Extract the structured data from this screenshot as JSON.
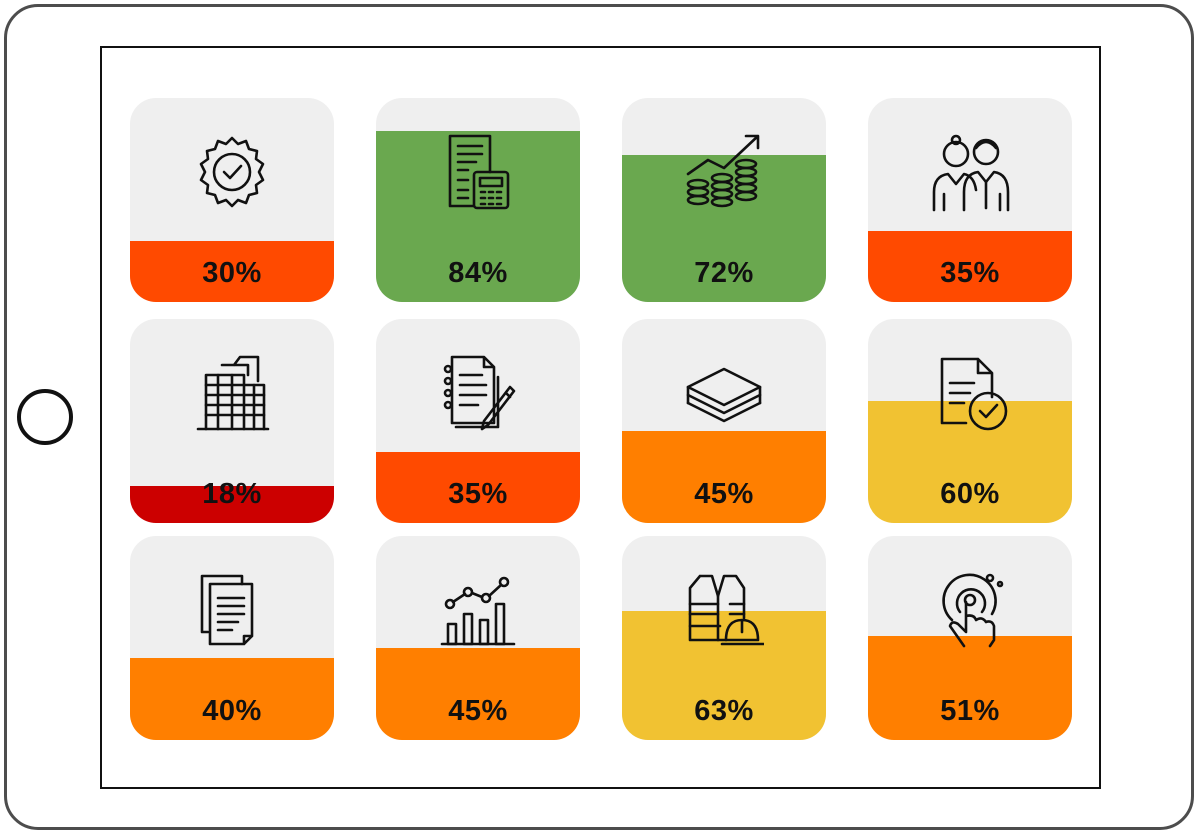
{
  "colors": {
    "red_orange": "#ff4a00",
    "green": "#6aa84f",
    "dark_red": "#cc0000",
    "orange": "#ff7f00",
    "yellow": "#f1c232",
    "tile_background": "#efefef"
  },
  "tiles": [
    {
      "icon": "quality-badge-icon",
      "percent": 30,
      "label": "30%",
      "color": "#ff4a00"
    },
    {
      "icon": "accounting-document-calculator-icon",
      "percent": 84,
      "label": "84%",
      "color": "#6aa84f"
    },
    {
      "icon": "coins-growth-icon",
      "percent": 72,
      "label": "72%",
      "color": "#6aa84f"
    },
    {
      "icon": "business-team-icon",
      "percent": 35,
      "label": "35%",
      "color": "#ff4a00"
    },
    {
      "icon": "office-building-icon",
      "percent": 18,
      "label": "18%",
      "color": "#cc0000"
    },
    {
      "icon": "notepad-pen-icon",
      "percent": 35,
      "label": "35%",
      "color": "#ff4a00"
    },
    {
      "icon": "layers-icon",
      "percent": 45,
      "label": "45%",
      "color": "#ff7f00"
    },
    {
      "icon": "document-approved-icon",
      "percent": 60,
      "label": "60%",
      "color": "#f1c232"
    },
    {
      "icon": "documents-copy-icon",
      "percent": 40,
      "label": "40%",
      "color": "#ff7f00"
    },
    {
      "icon": "bar-chart-growth-icon",
      "percent": 45,
      "label": "45%",
      "color": "#ff7f00"
    },
    {
      "icon": "safety-vest-helmet-icon",
      "percent": 63,
      "label": "63%",
      "color": "#f1c232"
    },
    {
      "icon": "touch-target-icon",
      "percent": 51,
      "label": "51%",
      "color": "#ff7f00"
    }
  ]
}
